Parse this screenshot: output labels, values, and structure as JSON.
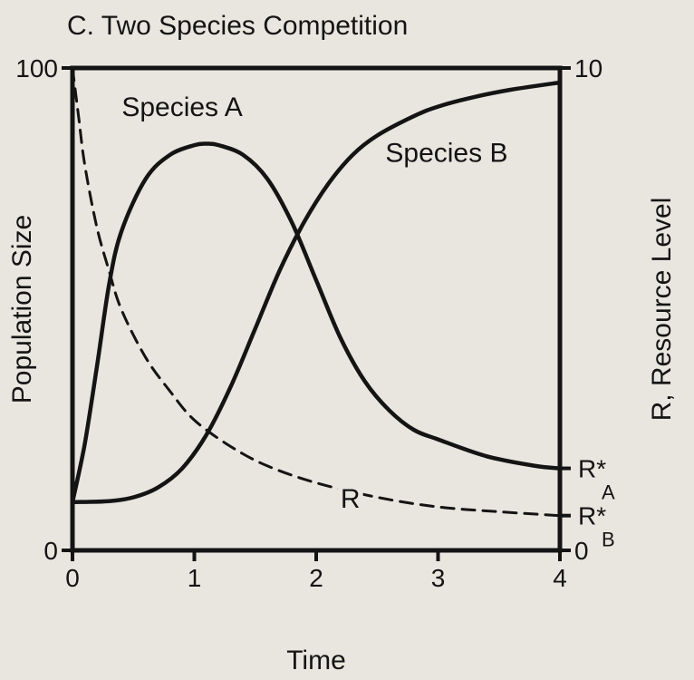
{
  "chart_data": {
    "type": "line",
    "title": "C. Two Species Competition",
    "xlabel": "Time",
    "ylabel": "Population Size",
    "y2label": "R, Resource Level",
    "xlim": [
      0,
      4
    ],
    "ylim": [
      0,
      100
    ],
    "y2lim": [
      0,
      10
    ],
    "x_ticks": [
      "0",
      "1",
      "2",
      "3",
      "4"
    ],
    "y_ticks_left": [
      "0",
      "100"
    ],
    "y_ticks_right": [
      "0",
      "10"
    ],
    "grid": false,
    "series": [
      {
        "name": "Species A",
        "axis": "left",
        "style": "solid",
        "x": [
          0,
          0.1,
          0.2,
          0.3,
          0.4,
          0.6,
          0.8,
          1.0,
          1.1,
          1.2,
          1.4,
          1.6,
          1.8,
          2.0,
          2.2,
          2.4,
          2.6,
          2.8,
          3.0,
          3.4,
          3.8,
          4.0
        ],
        "y": [
          10,
          22,
          38,
          55,
          66,
          77,
          82,
          84,
          84.3,
          84,
          82,
          77,
          68,
          56,
          44,
          35,
          29,
          25,
          23,
          19.5,
          17.5,
          17
        ]
      },
      {
        "name": "Species B",
        "axis": "left",
        "style": "solid",
        "x": [
          0,
          0.3,
          0.5,
          0.7,
          0.9,
          1.1,
          1.3,
          1.5,
          1.7,
          1.9,
          2.1,
          2.3,
          2.5,
          2.8,
          3.0,
          3.3,
          3.6,
          4.0
        ],
        "y": [
          10,
          10.2,
          11,
          13,
          17,
          24,
          34,
          46,
          58,
          68,
          76,
          82,
          86,
          90,
          92,
          94,
          95.5,
          97
        ]
      },
      {
        "name": "R",
        "axis": "right",
        "style": "dashed",
        "x": [
          0,
          0.05,
          0.1,
          0.2,
          0.3,
          0.4,
          0.6,
          0.8,
          1.0,
          1.3,
          1.6,
          2.0,
          2.5,
          3.0,
          3.5,
          4.0
        ],
        "y": [
          10,
          9.0,
          8.0,
          6.7,
          5.8,
          5.0,
          4.0,
          3.3,
          2.7,
          2.15,
          1.75,
          1.4,
          1.1,
          0.9,
          0.8,
          0.72
        ]
      }
    ],
    "annotations": [
      {
        "text": "Species A",
        "series": "Species A"
      },
      {
        "text": "Species B",
        "series": "Species B"
      },
      {
        "text": "R",
        "series": "R"
      },
      {
        "text": "R*",
        "sub": "A",
        "axis": "right",
        "value": 1.7
      },
      {
        "text": "R*",
        "sub": "B",
        "axis": "right",
        "value": 0.72
      }
    ]
  }
}
